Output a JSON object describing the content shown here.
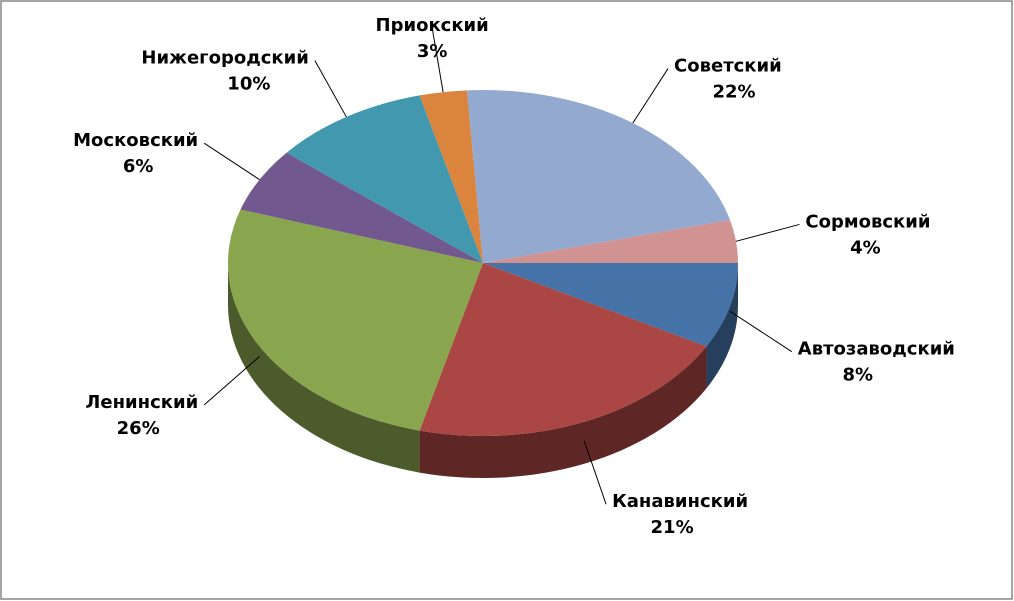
{
  "chart_data": {
    "type": "pie",
    "three_d": true,
    "categories": [
      "Автозаводский",
      "Канавинский",
      "Ленинский",
      "Московский",
      "Нижегородский",
      "Приокский",
      "Советский",
      "Сормовский"
    ],
    "values": [
      8,
      21,
      26,
      6,
      10,
      3,
      22,
      4
    ],
    "value_labels": [
      "8%",
      "21%",
      "26%",
      "6%",
      "10%",
      "3%",
      "22%",
      "4%"
    ],
    "colors": [
      "#4572a7",
      "#aa4643",
      "#89a54e",
      "#71588f",
      "#4198af",
      "#db843d",
      "#93a9cf",
      "#d19392"
    ]
  }
}
